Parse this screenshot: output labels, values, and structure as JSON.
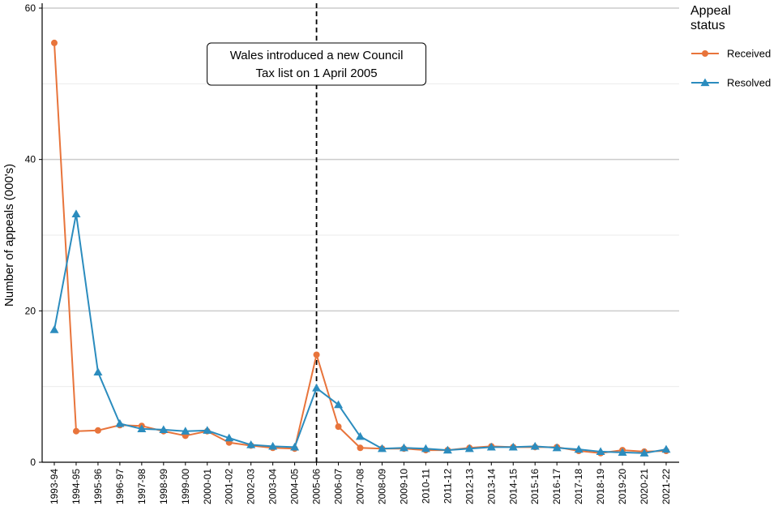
{
  "chart_data": {
    "type": "line",
    "title": "",
    "xlabel": "",
    "ylabel": "Number of appeals (000's)",
    "ylim": [
      0,
      60
    ],
    "yticks": [
      0,
      20,
      40,
      60
    ],
    "grid": "horizontal",
    "legend": {
      "title_lines": [
        "Appeal",
        "status"
      ],
      "position": "right"
    },
    "categories": [
      "1993-94",
      "1994-95",
      "1995-96",
      "1996-97",
      "1997-98",
      "1998-99",
      "1999-00",
      "2000-01",
      "2001-02",
      "2002-03",
      "2003-04",
      "2004-05",
      "2005-06",
      "2006-07",
      "2007-08",
      "2008-09",
      "2009-10",
      "2010-11",
      "2011-12",
      "2012-13",
      "2013-14",
      "2014-15",
      "2015-16",
      "2016-17",
      "2017-18",
      "2018-19",
      "2019-20",
      "2020-21",
      "2021-22"
    ],
    "series": [
      {
        "name": "Received",
        "color": "#e8743b",
        "marker": "circle",
        "values": [
          55.4,
          4.1,
          4.2,
          4.9,
          4.8,
          4.1,
          3.5,
          4.1,
          2.6,
          2.2,
          1.9,
          1.8,
          14.2,
          4.7,
          1.9,
          1.8,
          1.8,
          1.6,
          1.6,
          1.9,
          2.1,
          2.0,
          2.0,
          2.0,
          1.5,
          1.2,
          1.6,
          1.4,
          1.5
        ]
      },
      {
        "name": "Resolved",
        "color": "#2b8cbe",
        "marker": "triangle",
        "values": [
          17.5,
          32.8,
          11.9,
          5.1,
          4.4,
          4.3,
          4.1,
          4.2,
          3.2,
          2.3,
          2.1,
          2.0,
          9.8,
          7.6,
          3.4,
          1.8,
          1.9,
          1.8,
          1.6,
          1.8,
          2.0,
          2.0,
          2.1,
          1.9,
          1.7,
          1.4,
          1.3,
          1.2,
          1.7
        ]
      }
    ],
    "reference_line": {
      "category": "2005-06",
      "style": "dashed"
    },
    "annotation": {
      "lines": [
        "Wales introduced a new Council",
        "Tax list on 1 April 2005"
      ]
    }
  }
}
